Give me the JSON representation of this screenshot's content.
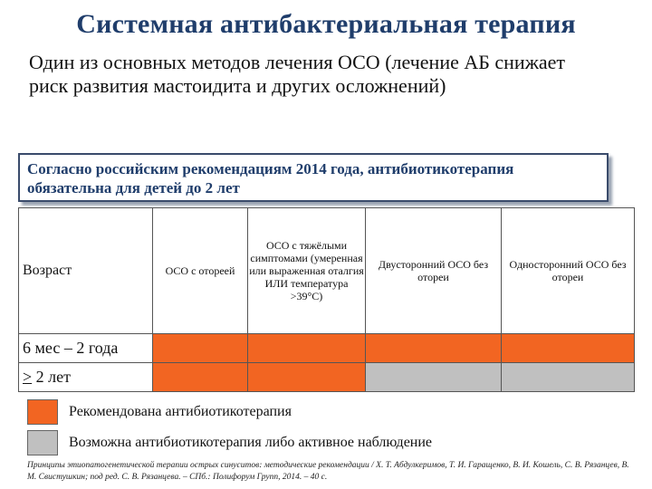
{
  "title": "Системная антибактериальная терапия",
  "intro": "Один из основных методов лечения ОСО (лечение АБ снижает риск развития мастоидита и других осложнений)",
  "callout": "Согласно российским рекомендациям 2014 года, антибиотикотерапия обязательна для детей до 2 лет",
  "table": {
    "headers": [
      "Возраст",
      "ОСО с отореей",
      "ОСО с тяжёлыми симптомами (умеренная или выраженная оталгия ИЛИ температура >39°С)",
      "Двусторонний ОСО без отореи",
      "Односторонний ОСО без отореи"
    ],
    "rows": [
      {
        "label_symbol": "",
        "label": "6 мес – 2 года",
        "cells": [
          "orange",
          "orange",
          "orange",
          "orange"
        ]
      },
      {
        "label_symbol": ">",
        "label": " 2 лет",
        "cells": [
          "orange",
          "orange",
          "gray",
          "gray"
        ]
      }
    ]
  },
  "legend": [
    {
      "color": "#f26522",
      "text": "Рекомендована антибиотикотерапия"
    },
    {
      "color": "#c0c0c0",
      "text": "Возможна антибиотикотерапия либо активное наблюдение"
    }
  ],
  "colors": {
    "orange": "#f26522",
    "gray": "#c0c0c0",
    "title": "#1f3d6b"
  },
  "footnote": "Принципы этиопатогенетической терапии острых синуситов: методические рекомендации / Х. Т. Абдулкеримов, Т. И. Гаращенко, В. И. Кошель, С. В. Рязанцев, В. М. Свистушкин; под ред. С. В. Рязанцева. – СПб.: Полифорум Групп, 2014. – 40 с."
}
